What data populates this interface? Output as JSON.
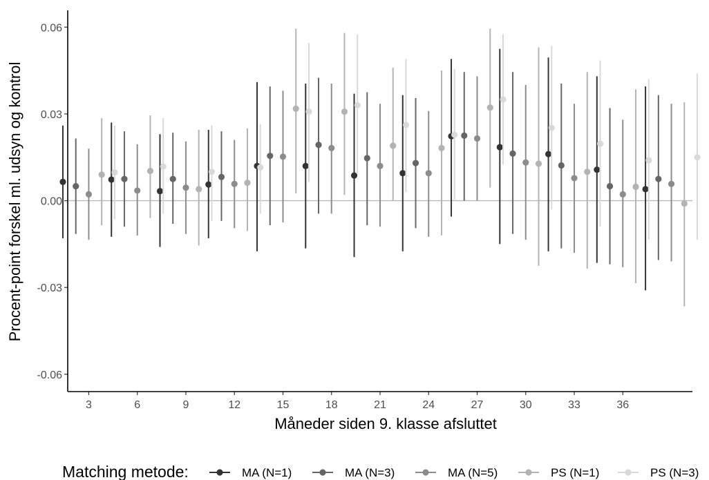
{
  "chart_data": {
    "type": "scatter",
    "subtype": "pointrange",
    "title": "",
    "xlabel": "Måneder siden 9. klasse afsluttet",
    "ylabel": "Procent-point forskel ml. udsyn og kontrol",
    "x_ticks": [
      "3",
      "6",
      "9",
      "12",
      "15",
      "18",
      "21",
      "24",
      "27",
      "30",
      "33",
      "36"
    ],
    "y_ticks": [
      {
        "value": 0.06,
        "label": "0.06"
      },
      {
        "value": 0.03,
        "label": "0.03"
      },
      {
        "value": 0.0,
        "label": "0.00"
      },
      {
        "value": -0.03,
        "label": "-0.03"
      },
      {
        "value": -0.06,
        "label": "-0.06"
      }
    ],
    "xlim": [
      1.7,
      40.3
    ],
    "ylim": [
      -0.066,
      0.0658
    ],
    "reference_line_y": 0,
    "grid": false,
    "legend": {
      "title": "Matching metode:",
      "position": "bottom"
    },
    "x": [
      3,
      6,
      9,
      12,
      15,
      18,
      21,
      24,
      27,
      30,
      33,
      36,
      39
    ],
    "series": [
      {
        "name": "MA (N=1)",
        "color": "#333333",
        "values": [
          0.0065,
          0.0073,
          0.0033,
          0.0056,
          0.012,
          0.012,
          0.0087,
          0.0095,
          0.0223,
          0.0185,
          0.0161,
          0.0107,
          0.004
        ],
        "lower": [
          -0.013,
          -0.0125,
          -0.016,
          -0.013,
          -0.0175,
          -0.0165,
          -0.0195,
          -0.0175,
          -0.0055,
          -0.015,
          -0.0175,
          -0.0215,
          -0.031
        ],
        "upper": [
          0.026,
          0.027,
          0.023,
          0.0245,
          0.041,
          0.0405,
          0.037,
          0.0365,
          0.049,
          0.0525,
          0.0495,
          0.043,
          0.0395
        ]
      },
      {
        "name": "MA (N=3)",
        "color": "#666666",
        "values": [
          0.005,
          0.0075,
          0.0075,
          0.0082,
          0.0155,
          0.0193,
          0.0147,
          0.013,
          0.0225,
          0.0163,
          0.0122,
          0.005,
          0.0075
        ],
        "lower": [
          -0.0115,
          -0.009,
          -0.008,
          -0.007,
          -0.0085,
          -0.0045,
          -0.0085,
          -0.0095,
          -0.0,
          -0.0115,
          -0.0165,
          -0.022,
          -0.0205
        ],
        "upper": [
          0.0215,
          0.024,
          0.0235,
          0.024,
          0.0395,
          0.0425,
          0.0375,
          0.0355,
          0.0445,
          0.0445,
          0.0405,
          0.032,
          0.0365
        ]
      },
      {
        "name": "MA (N=5)",
        "color": "#8c8c8c",
        "values": [
          0.0022,
          0.0035,
          0.0045,
          0.0058,
          0.0152,
          0.0182,
          0.012,
          0.0095,
          0.0215,
          0.0132,
          0.0078,
          0.0022,
          0.0058
        ],
        "lower": [
          -0.0135,
          -0.012,
          -0.0115,
          -0.0095,
          -0.0075,
          -0.0045,
          -0.009,
          -0.0125,
          0.0,
          -0.0135,
          -0.018,
          -0.023,
          -0.021
        ],
        "upper": [
          0.018,
          0.0195,
          0.0205,
          0.021,
          0.038,
          0.0405,
          0.0335,
          0.031,
          0.043,
          0.04,
          0.0335,
          0.028,
          0.0335
        ]
      },
      {
        "name": "PS (N=1)",
        "color": "#b3b3b3",
        "values": [
          0.009,
          0.0103,
          0.004,
          0.0062,
          0.0318,
          0.0308,
          0.019,
          0.0182,
          0.0322,
          0.0128,
          0.01,
          0.0048,
          -0.001
        ],
        "lower": [
          -0.0085,
          -0.006,
          -0.0155,
          -0.0105,
          0.0025,
          0.002,
          0.0,
          -0.012,
          0.0045,
          -0.0225,
          -0.0235,
          -0.0285,
          -0.0365
        ],
        "upper": [
          0.0285,
          0.0295,
          0.0245,
          0.025,
          0.0595,
          0.058,
          0.046,
          0.045,
          0.0595,
          0.053,
          0.0445,
          0.0385,
          0.034
        ]
      },
      {
        "name": "PS (N=3)",
        "color": "#d9d9d9",
        "values": [
          0.0098,
          0.0118,
          0.01,
          0.0115,
          0.0308,
          0.033,
          0.0262,
          0.0228,
          0.035,
          0.0252,
          0.0197,
          0.014,
          0.015
        ],
        "lower": [
          -0.0065,
          -0.0045,
          -0.007,
          -0.0045,
          0.0065,
          0.0095,
          0.003,
          0.0,
          0.0125,
          -0.003,
          -0.009,
          -0.0135,
          -0.0135
        ],
        "upper": [
          0.026,
          0.0285,
          0.026,
          0.0265,
          0.0545,
          0.0575,
          0.049,
          0.0455,
          0.0575,
          0.0535,
          0.0485,
          0.042,
          0.044
        ]
      }
    ]
  }
}
